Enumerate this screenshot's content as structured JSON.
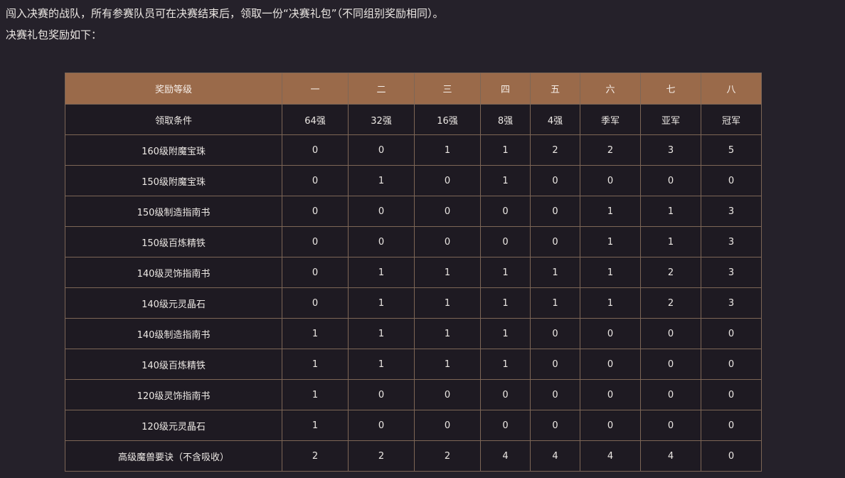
{
  "intro": {
    "line1": "闯入决赛的战队，所有参赛队员可在决赛结束后，领取一份“决赛礼包”（不同组别奖励相同）。",
    "line2": "决赛礼包奖励如下："
  },
  "table": {
    "headers": [
      "奖励等级",
      "一",
      "二",
      "三",
      "四",
      "五",
      "六",
      "七",
      "八"
    ],
    "rows": [
      [
        "领取条件",
        "64强",
        "32强",
        "16强",
        "8强",
        "4强",
        "季军",
        "亚军",
        "冠军"
      ],
      [
        "160级附魔宝珠",
        "0",
        "0",
        "1",
        "1",
        "2",
        "2",
        "3",
        "5"
      ],
      [
        "150级附魔宝珠",
        "0",
        "1",
        "0",
        "1",
        "0",
        "0",
        "0",
        "0"
      ],
      [
        "150级制造指南书",
        "0",
        "0",
        "0",
        "0",
        "0",
        "1",
        "1",
        "3"
      ],
      [
        "150级百炼精铁",
        "0",
        "0",
        "0",
        "0",
        "0",
        "1",
        "1",
        "3"
      ],
      [
        "140级灵饰指南书",
        "0",
        "1",
        "1",
        "1",
        "1",
        "1",
        "2",
        "3"
      ],
      [
        "140级元灵晶石",
        "0",
        "1",
        "1",
        "1",
        "1",
        "1",
        "2",
        "3"
      ],
      [
        "140级制造指南书",
        "1",
        "1",
        "1",
        "1",
        "0",
        "0",
        "0",
        "0"
      ],
      [
        "140级百炼精铁",
        "1",
        "1",
        "1",
        "1",
        "0",
        "0",
        "0",
        "0"
      ],
      [
        "120级灵饰指南书",
        "1",
        "0",
        "0",
        "0",
        "0",
        "0",
        "0",
        "0"
      ],
      [
        "120级元灵晶石",
        "1",
        "0",
        "0",
        "0",
        "0",
        "0",
        "0",
        "0"
      ],
      [
        "高级魔兽要诀（不含吸收）",
        "2",
        "2",
        "2",
        "4",
        "4",
        "4",
        "4",
        "0"
      ]
    ]
  }
}
